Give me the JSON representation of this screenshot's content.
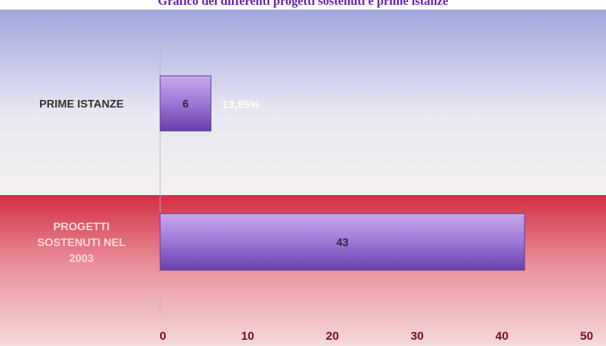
{
  "title": "Grafico dei differenti progetti sostenuti e prime istanze",
  "chart_data": {
    "type": "bar",
    "orientation": "horizontal",
    "categories": [
      "PRIME ISTANZE",
      "PROGETTI SOSTENUTI NEL 2003"
    ],
    "category_lines": [
      [
        "PRIME ISTANZE"
      ],
      [
        "PROGETTI",
        "SOSTENUTI NEL",
        "2003"
      ]
    ],
    "values": [
      6,
      43
    ],
    "value_labels": [
      "6",
      "43"
    ],
    "annotations": [
      {
        "category": "PRIME ISTANZE",
        "text": "13,95%"
      }
    ],
    "xlim": [
      0,
      50
    ],
    "xticks": [
      0,
      10,
      20,
      30,
      40,
      50
    ],
    "grid": false,
    "legend": "none",
    "colors": {
      "bar_top": "#c9a8ee",
      "bar_mid": "#9a78d6",
      "bar_bottom": "#6a3fae",
      "band_top_start": "#9fa6dc",
      "band_top_end": "#f4f1ef",
      "band_bottom_start": "#d22e45",
      "band_bottom_end": "#f5dada",
      "category_text": "#333333",
      "category_text_band2": "#ffd8d8",
      "annotation_text": "#ffffff",
      "tick_text": "#7a0f20"
    }
  }
}
